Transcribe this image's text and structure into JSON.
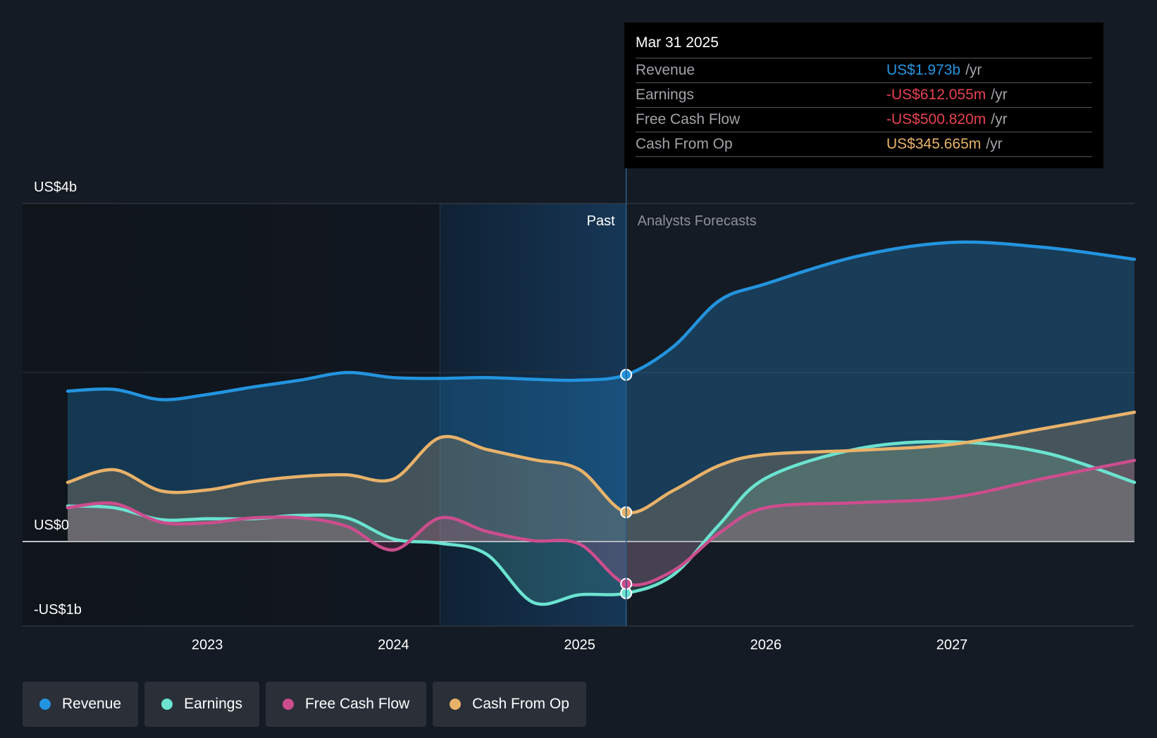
{
  "chart_data": {
    "type": "area",
    "y_axis_labels": [
      "US$4b",
      "US$0",
      "-US$1b"
    ],
    "ylim": [
      -1.0,
      4.0
    ],
    "x_ticks": [
      {
        "label": "2023",
        "x": 2023.0
      },
      {
        "label": "2024",
        "x": 2024.0
      },
      {
        "label": "2025",
        "x": 2025.0
      },
      {
        "label": "2026",
        "x": 2026.0
      },
      {
        "label": "2027",
        "x": 2027.0
      }
    ],
    "xlim": [
      2022.0,
      2027.98
    ],
    "past_label": "Past",
    "forecast_label": "Analysts Forecasts",
    "highlight_x": 2025.25,
    "highlight_start_x": 2024.25,
    "series": [
      {
        "name": "Revenue",
        "color": "#2394df",
        "values": [
          [
            2022.25,
            1.78
          ],
          [
            2022.5,
            1.8
          ],
          [
            2022.75,
            1.68
          ],
          [
            2023.0,
            1.74
          ],
          [
            2023.25,
            1.83
          ],
          [
            2023.5,
            1.91
          ],
          [
            2023.75,
            2.0
          ],
          [
            2024.0,
            1.94
          ],
          [
            2024.25,
            1.93
          ],
          [
            2024.5,
            1.94
          ],
          [
            2024.75,
            1.92
          ],
          [
            2025.0,
            1.91
          ],
          [
            2025.25,
            1.973
          ],
          [
            2025.5,
            2.3
          ],
          [
            2025.75,
            2.85
          ],
          [
            2026.0,
            3.05
          ],
          [
            2026.5,
            3.38
          ],
          [
            2027.0,
            3.54
          ],
          [
            2027.5,
            3.48
          ],
          [
            2027.98,
            3.34
          ]
        ]
      },
      {
        "name": "Earnings",
        "color": "#6be3d0",
        "values": [
          [
            2022.25,
            0.42
          ],
          [
            2022.5,
            0.4
          ],
          [
            2022.75,
            0.26
          ],
          [
            2023.0,
            0.27
          ],
          [
            2023.25,
            0.27
          ],
          [
            2023.5,
            0.31
          ],
          [
            2023.75,
            0.28
          ],
          [
            2024.0,
            0.03
          ],
          [
            2024.25,
            -0.02
          ],
          [
            2024.5,
            -0.15
          ],
          [
            2024.75,
            -0.72
          ],
          [
            2025.0,
            -0.63
          ],
          [
            2025.25,
            -0.612
          ],
          [
            2025.5,
            -0.4
          ],
          [
            2025.75,
            0.2
          ],
          [
            2026.0,
            0.75
          ],
          [
            2026.5,
            1.1
          ],
          [
            2027.0,
            1.18
          ],
          [
            2027.5,
            1.05
          ],
          [
            2027.98,
            0.7
          ]
        ]
      },
      {
        "name": "Free Cash Flow",
        "color": "#cc4d8e",
        "values": [
          [
            2022.25,
            0.4
          ],
          [
            2022.5,
            0.45
          ],
          [
            2022.75,
            0.23
          ],
          [
            2023.0,
            0.22
          ],
          [
            2023.25,
            0.28
          ],
          [
            2023.5,
            0.28
          ],
          [
            2023.75,
            0.18
          ],
          [
            2024.0,
            -0.1
          ],
          [
            2024.25,
            0.28
          ],
          [
            2024.5,
            0.12
          ],
          [
            2024.75,
            0.01
          ],
          [
            2025.0,
            -0.03
          ],
          [
            2025.25,
            -0.501
          ],
          [
            2025.5,
            -0.35
          ],
          [
            2025.75,
            0.1
          ],
          [
            2026.0,
            0.4
          ],
          [
            2026.5,
            0.46
          ],
          [
            2027.0,
            0.52
          ],
          [
            2027.5,
            0.75
          ],
          [
            2027.98,
            0.96
          ]
        ]
      },
      {
        "name": "Cash From Op",
        "color": "#e8b26a",
        "values": [
          [
            2022.25,
            0.7
          ],
          [
            2022.5,
            0.85
          ],
          [
            2022.75,
            0.6
          ],
          [
            2023.0,
            0.61
          ],
          [
            2023.25,
            0.71
          ],
          [
            2023.5,
            0.77
          ],
          [
            2023.75,
            0.79
          ],
          [
            2024.0,
            0.74
          ],
          [
            2024.25,
            1.23
          ],
          [
            2024.5,
            1.09
          ],
          [
            2024.75,
            0.97
          ],
          [
            2025.0,
            0.85
          ],
          [
            2025.25,
            0.346
          ],
          [
            2025.5,
            0.6
          ],
          [
            2025.75,
            0.9
          ],
          [
            2026.0,
            1.03
          ],
          [
            2026.5,
            1.08
          ],
          [
            2027.0,
            1.15
          ],
          [
            2027.5,
            1.34
          ],
          [
            2027.98,
            1.53
          ]
        ]
      }
    ]
  },
  "tooltip": {
    "date": "Mar 31 2025",
    "rows": [
      {
        "label": "Revenue",
        "value": "US$1.973b",
        "unit": "/yr",
        "color": "#2394df"
      },
      {
        "label": "Earnings",
        "value": "-US$612.055m",
        "unit": "/yr",
        "color": "#e6424f"
      },
      {
        "label": "Free Cash Flow",
        "value": "-US$500.820m",
        "unit": "/yr",
        "color": "#e6424f"
      },
      {
        "label": "Cash From Op",
        "value": "US$345.665m",
        "unit": "/yr",
        "color": "#e8b26a"
      }
    ]
  },
  "legend": [
    {
      "label": "Revenue",
      "color": "#2394df"
    },
    {
      "label": "Earnings",
      "color": "#6be3d0"
    },
    {
      "label": "Free Cash Flow",
      "color": "#cc4d8e"
    },
    {
      "label": "Cash From Op",
      "color": "#e8b26a"
    }
  ]
}
